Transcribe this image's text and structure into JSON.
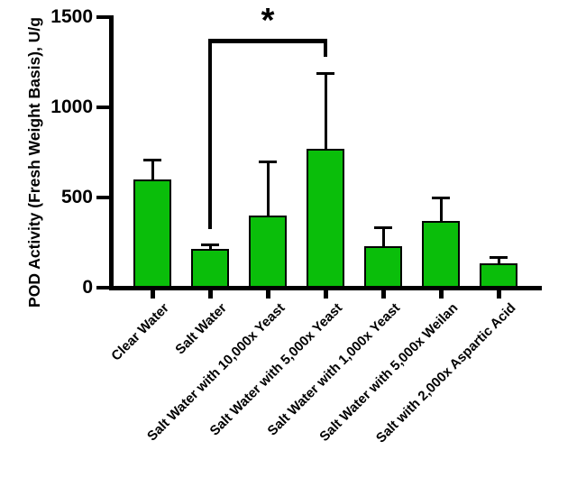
{
  "chart_data": {
    "type": "bar",
    "title": "",
    "xlabel": "",
    "ylabel": "POD Activity (Fresh Weight Basis), U/g",
    "ylim": [
      0,
      1500
    ],
    "yticks": [
      0,
      500,
      1000,
      1500
    ],
    "grid": false,
    "legend_position": "none",
    "categories": [
      "Clear Water",
      "Salt Water",
      "Salt Water with 10,000x Yeast",
      "Salt Water with 5,000x Yeast",
      "Salt Water with 1,000x Yeast",
      "Salt Water with 5,000x Weilan",
      "Salt with 2,000x Aspartic Acid"
    ],
    "values": [
      600,
      215,
      400,
      770,
      230,
      370,
      135
    ],
    "errors_upper": [
      110,
      25,
      300,
      420,
      105,
      130,
      35
    ],
    "bar_fill_color": "#0ABE0A",
    "bar_border_color": "#000000",
    "axis_color": "#000000",
    "error_bar_color": "#000000",
    "significance": {
      "label": "*",
      "from_category": "Salt Water",
      "to_category": "Salt Water with 5,000x Yeast"
    }
  }
}
